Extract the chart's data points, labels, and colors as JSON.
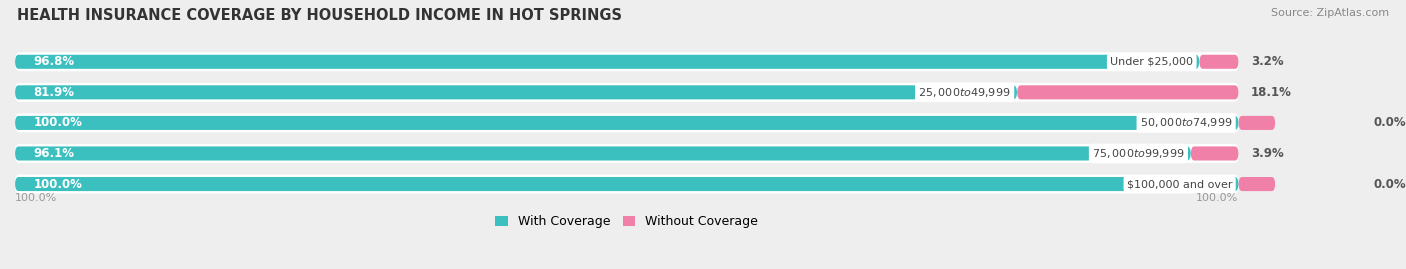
{
  "title": "HEALTH INSURANCE COVERAGE BY HOUSEHOLD INCOME IN HOT SPRINGS",
  "source": "Source: ZipAtlas.com",
  "categories": [
    "Under $25,000",
    "$25,000 to $49,999",
    "$50,000 to $74,999",
    "$75,000 to $99,999",
    "$100,000 and over"
  ],
  "with_coverage": [
    96.8,
    81.9,
    100.0,
    96.1,
    100.0
  ],
  "without_coverage": [
    3.2,
    18.1,
    0.0,
    3.9,
    0.0
  ],
  "with_coverage_color": "#3bbfbf",
  "without_coverage_color": "#f080a8",
  "background_color": "#eeeeee",
  "bar_background_color": "#ffffff",
  "bar_height": 0.62,
  "title_fontsize": 10.5,
  "label_fontsize": 8.5,
  "legend_fontsize": 9,
  "source_fontsize": 8,
  "tick_label_color": "#999999",
  "value_label_color": "#555555"
}
